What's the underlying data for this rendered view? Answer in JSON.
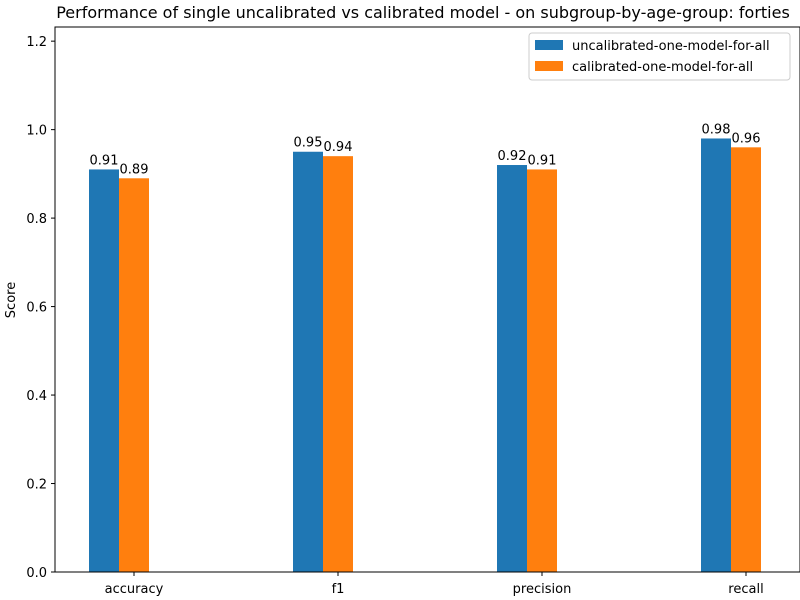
{
  "chart_data": {
    "type": "bar",
    "title": "Performance of single uncalibrated vs calibrated model - on subgroup-by-age-group: forties",
    "xlabel": "",
    "ylabel": "Score",
    "categories": [
      "accuracy",
      "f1",
      "precision",
      "recall"
    ],
    "series": [
      {
        "name": "uncalibrated-one-model-for-all",
        "values": [
          0.91,
          0.95,
          0.92,
          0.98
        ],
        "color": "#1f77b4"
      },
      {
        "name": "calibrated-one-model-for-all",
        "values": [
          0.89,
          0.94,
          0.91,
          0.96
        ],
        "color": "#ff7f0e"
      }
    ],
    "data_labels": [
      [
        "0.91",
        "0.95",
        "0.92",
        "0.98"
      ],
      [
        "0.89",
        "0.94",
        "0.91",
        "0.96"
      ]
    ],
    "ylim": [
      0,
      1.232
    ],
    "yticks": [
      0.0,
      0.2,
      0.4,
      0.6,
      0.8,
      1.0,
      1.2
    ],
    "ytick_labels": [
      "0.0",
      "0.2",
      "0.4",
      "0.6",
      "0.8",
      "1.0",
      "1.2"
    ],
    "grid": false,
    "legend_position": "top-right"
  }
}
